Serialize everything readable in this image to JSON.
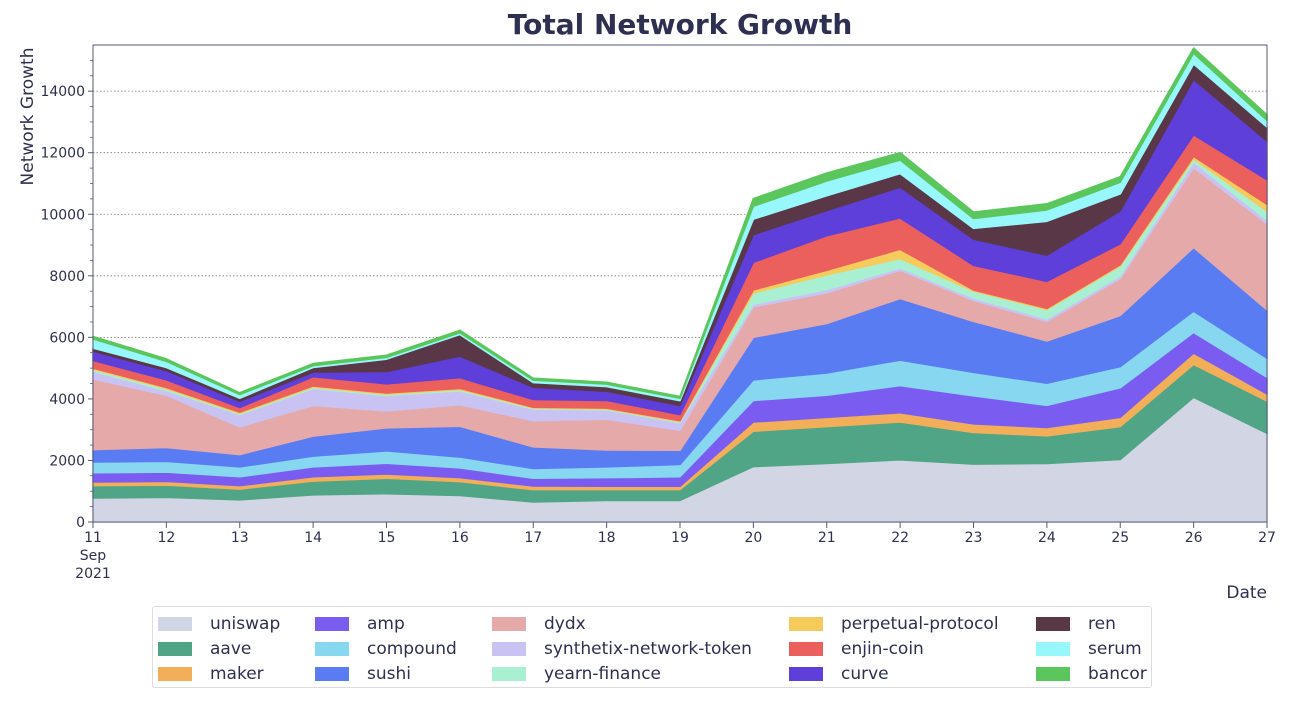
{
  "chart_data": {
    "type": "area",
    "stacked": true,
    "title": "Total Network Growth",
    "xlabel": "Date",
    "ylabel": "Network Growth",
    "ylim": [
      0,
      15500
    ],
    "yticks": [
      0,
      2000,
      4000,
      6000,
      8000,
      10000,
      12000,
      14000
    ],
    "grid": "horizontal dotted",
    "legend_position": "bottom",
    "categories": [
      "11",
      "12",
      "13",
      "14",
      "15",
      "16",
      "17",
      "18",
      "19",
      "20",
      "21",
      "22",
      "23",
      "24",
      "25",
      "26",
      "27"
    ],
    "x_sub_labels": {
      "month": "Sep",
      "year": "2021"
    },
    "series": [
      {
        "name": "uniswap",
        "color": "#d2d6e4",
        "values": [
          780,
          800,
          720,
          880,
          920,
          860,
          650,
          700,
          700,
          1800,
          1900,
          2020,
          1880,
          1900,
          2030,
          4050,
          2880
        ]
      },
      {
        "name": "aave",
        "color": "#4fa586",
        "values": [
          400,
          400,
          350,
          450,
          500,
          450,
          400,
          350,
          350,
          1150,
          1200,
          1230,
          1030,
          900,
          1070,
          1070,
          1050
        ]
      },
      {
        "name": "maker",
        "color": "#f2ae58",
        "values": [
          120,
          120,
          110,
          140,
          140,
          130,
          120,
          110,
          110,
          300,
          300,
          300,
          280,
          270,
          300,
          370,
          230
        ]
      },
      {
        "name": "amp",
        "color": "#7b5cf0",
        "values": [
          300,
          300,
          290,
          320,
          350,
          320,
          250,
          280,
          310,
          700,
          720,
          880,
          910,
          720,
          960,
          670,
          540
        ]
      },
      {
        "name": "compound",
        "color": "#87d7f0",
        "values": [
          350,
          350,
          320,
          350,
          400,
          350,
          320,
          350,
          400,
          670,
          720,
          830,
          760,
          720,
          690,
          690,
          620
        ]
      },
      {
        "name": "sushi",
        "color": "#5a7cf2",
        "values": [
          400,
          450,
          400,
          650,
          750,
          1000,
          700,
          550,
          460,
          1380,
          1610,
          2000,
          1660,
          1370,
          1660,
          2070,
          1570
        ]
      },
      {
        "name": "dydx",
        "color": "#e4a9a8",
        "values": [
          2300,
          1700,
          900,
          1000,
          550,
          700,
          850,
          1000,
          650,
          990,
          1000,
          920,
          680,
          640,
          1200,
          2600,
          2800
        ]
      },
      {
        "name": "synthetix-network-token",
        "color": "#c9c3f4",
        "values": [
          250,
          150,
          400,
          550,
          500,
          450,
          380,
          300,
          250,
          90,
          100,
          80,
          80,
          80,
          90,
          180,
          120
        ]
      },
      {
        "name": "yearn-finance",
        "color": "#a9f0d2",
        "values": [
          60,
          60,
          40,
          40,
          40,
          40,
          30,
          30,
          30,
          360,
          480,
          300,
          220,
          300,
          320,
          100,
          290
        ]
      },
      {
        "name": "perpetual-protocol",
        "color": "#f5cb5c",
        "values": [
          40,
          40,
          40,
          40,
          40,
          40,
          30,
          30,
          30,
          100,
          150,
          300,
          40,
          40,
          40,
          80,
          220
        ]
      },
      {
        "name": "enjin-coin",
        "color": "#eb605d",
        "values": [
          250,
          250,
          150,
          300,
          300,
          350,
          250,
          250,
          200,
          900,
          1120,
          1020,
          800,
          880,
          680,
          700,
          800
        ]
      },
      {
        "name": "curve",
        "color": "#5e3fd9",
        "values": [
          300,
          300,
          200,
          150,
          400,
          700,
          400,
          300,
          300,
          900,
          820,
          1000,
          850,
          850,
          1070,
          1800,
          1260
        ]
      },
      {
        "name": "ren",
        "color": "#5a3747",
        "values": [
          100,
          100,
          100,
          150,
          400,
          700,
          150,
          150,
          150,
          500,
          480,
          440,
          350,
          1100,
          550,
          500,
          450
        ]
      },
      {
        "name": "serum",
        "color": "#98f7fb",
        "values": [
          300,
          200,
          120,
          60,
          60,
          60,
          80,
          80,
          80,
          420,
          480,
          440,
          320,
          370,
          380,
          350,
          220
        ]
      },
      {
        "name": "bancor",
        "color": "#5ac65c",
        "values": [
          80,
          80,
          60,
          70,
          70,
          80,
          60,
          60,
          60,
          250,
          260,
          240,
          210,
          200,
          180,
          170,
          180
        ]
      }
    ]
  }
}
